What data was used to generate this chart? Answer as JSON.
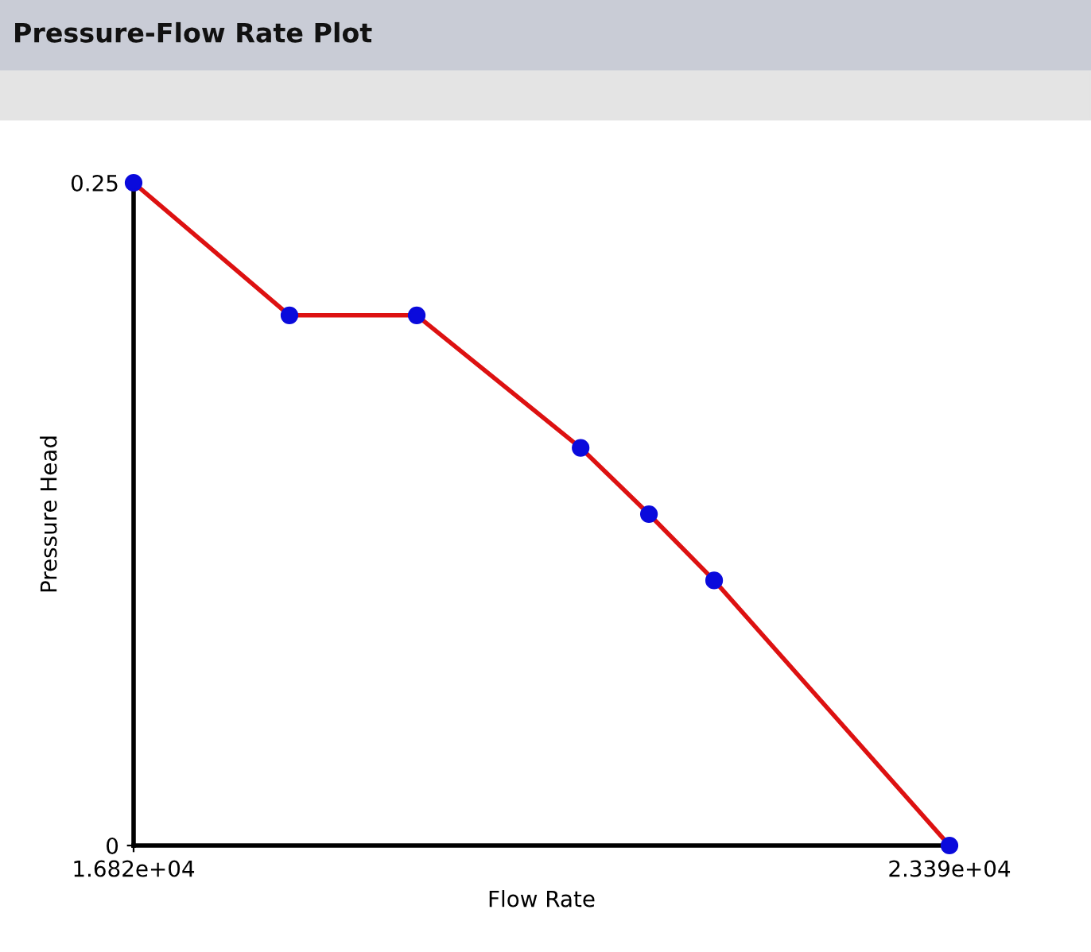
{
  "chart_data": {
    "type": "line",
    "title": "Pressure-Flow Rate Plot",
    "xlabel": "Flow Rate",
    "ylabel": "Pressure Head",
    "x": [
      16820,
      18075,
      19100,
      20420,
      20970,
      21495,
      23390
    ],
    "series": [
      {
        "color": "#dd1111",
        "values": [
          0.25,
          0.2,
          0.2,
          0.15,
          0.125,
          0.1,
          0
        ]
      }
    ],
    "marker": "circle",
    "line_style": "solid",
    "xlim": [
      16820,
      23390
    ],
    "xticks": [
      {
        "value": 16820,
        "label": "1.682e+04"
      },
      {
        "value": 23390,
        "label": "2.339e+04"
      }
    ],
    "ylim": [
      0,
      0.25
    ],
    "yticks": [
      0,
      0.25
    ],
    "grid": false,
    "legend": false
  }
}
